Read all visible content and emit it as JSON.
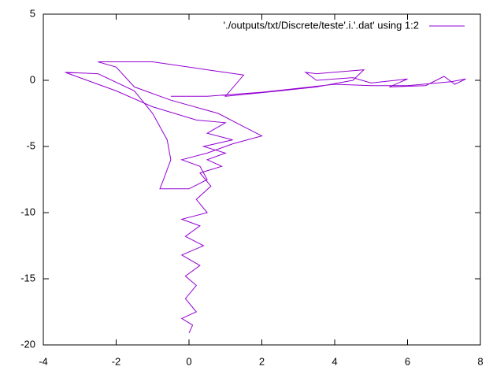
{
  "chart_data": {
    "type": "line",
    "x": [
      0,
      0.1,
      -0.2,
      0.2,
      -0.1,
      0.2,
      -0.1,
      0.3,
      -0.2,
      0.4,
      -0.1,
      0.3,
      -0.2,
      0.5,
      0.2,
      0.6,
      0.3,
      0.9,
      0.5,
      1.0,
      0.4,
      1.2,
      0.5,
      1.0,
      0.2,
      -1,
      -2,
      -3.4,
      -2.5,
      -1.5,
      -1,
      -0.6,
      -0.5,
      -0.7,
      -0.8,
      0,
      0.5,
      0.3,
      -0.2,
      0.5,
      1.2,
      2,
      1.5,
      0.8,
      -0.5,
      -1.5,
      -2,
      -2.5,
      -1,
      0.5,
      1.5,
      1.0,
      2.5,
      3.5,
      4.5,
      4.8,
      3.5,
      3.2,
      3.5,
      4.5,
      5,
      6,
      5.5,
      6.5,
      7,
      7.3,
      7.6,
      7.2,
      6,
      5,
      4,
      3,
      2,
      0.5,
      -0.5
    ],
    "series": [
      {
        "name": "'./outputs/txt/Discrete/teste'.i.'.dat' using 1:2",
        "color": "#9400d3",
        "values": [
          -19.1,
          -18.5,
          -18,
          -17.5,
          -16.5,
          -15.5,
          -14.8,
          -14,
          -13.2,
          -12.5,
          -11.8,
          -11,
          -10.5,
          -10,
          -9,
          -8,
          -7,
          -6.5,
          -6,
          -5.5,
          -5,
          -4.5,
          -4,
          -3.2,
          -3,
          -2,
          -0.8,
          0.6,
          0.5,
          -0.8,
          -2.5,
          -4.5,
          -6,
          -7.5,
          -8.2,
          -8.2,
          -7.5,
          -6.5,
          -6,
          -5.5,
          -4.8,
          -4.2,
          -3.5,
          -2.5,
          -1.5,
          -0.5,
          1,
          1.4,
          1.4,
          0.8,
          0.4,
          -1.2,
          -0.8,
          -0.5,
          0,
          0.8,
          0.5,
          0.6,
          0,
          0.2,
          -0.2,
          0.1,
          -0.5,
          -0.4,
          0.3,
          -0.3,
          0.1,
          -0.1,
          -0.4,
          -0.4,
          -0.3,
          -0.6,
          -0.9,
          -1.2,
          -1.2
        ]
      }
    ],
    "xlim": [
      -4,
      8
    ],
    "xticks": [
      -4,
      -2,
      0,
      2,
      4,
      6,
      8
    ],
    "ylim": [
      -20,
      5
    ],
    "yticks": [
      -20,
      -15,
      -10,
      -5,
      0,
      5
    ]
  }
}
